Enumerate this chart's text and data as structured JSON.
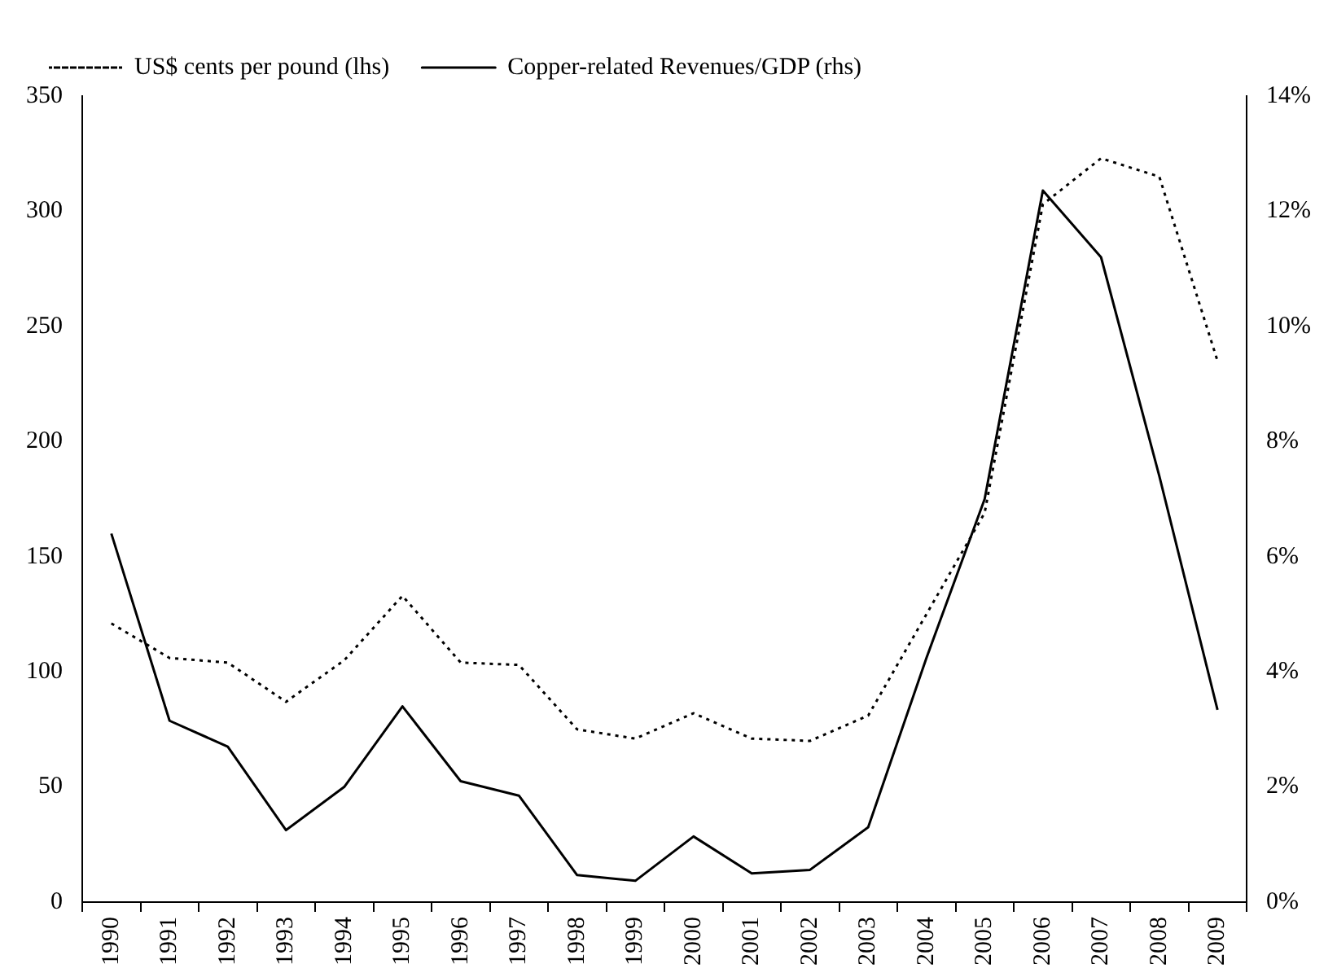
{
  "chart_data": {
    "type": "line",
    "categories": [
      "1990",
      "1991",
      "1992",
      "1993",
      "1994",
      "1995",
      "1996",
      "1997",
      "1998",
      "1999",
      "2000",
      "2001",
      "2002",
      "2003",
      "2004",
      "2005",
      "2006",
      "2007",
      "2008",
      "2009"
    ],
    "series": [
      {
        "name": "US$ cents per pound (lhs)",
        "color": "#000000",
        "line_style": "dotted",
        "values": [
          121,
          106,
          104,
          87,
          105,
          133,
          104,
          103,
          75,
          71,
          82,
          71,
          70,
          81,
          125,
          169,
          303,
          323,
          315,
          235
        ]
      },
      {
        "name": "Copper-related Revenues/GDP (rhs)",
        "color": "#000000",
        "line_style": "solid",
        "axis": "y2",
        "values": [
          6.4,
          3.15,
          2.7,
          1.25,
          2.0,
          3.4,
          2.1,
          1.85,
          0.47,
          0.37,
          1.14,
          0.5,
          0.56,
          1.3,
          4.24,
          7.0,
          12.36,
          11.2,
          7.4,
          3.34
        ]
      }
    ],
    "ylim": [
      0,
      350
    ],
    "yticks": [
      0,
      50,
      100,
      150,
      200,
      250,
      300,
      350
    ],
    "y2lim": [
      0,
      14
    ],
    "y2ticks": [
      {
        "value": 0,
        "label": "0%"
      },
      {
        "value": 2,
        "label": "2%"
      },
      {
        "value": 4,
        "label": "4%"
      },
      {
        "value": 6,
        "label": "6%"
      },
      {
        "value": 8,
        "label": "8%"
      },
      {
        "value": 10,
        "label": "10%"
      },
      {
        "value": 12,
        "label": "12%"
      },
      {
        "value": 14,
        "label": "14%"
      }
    ],
    "grid": false,
    "legend": "top left",
    "marker": "none"
  }
}
